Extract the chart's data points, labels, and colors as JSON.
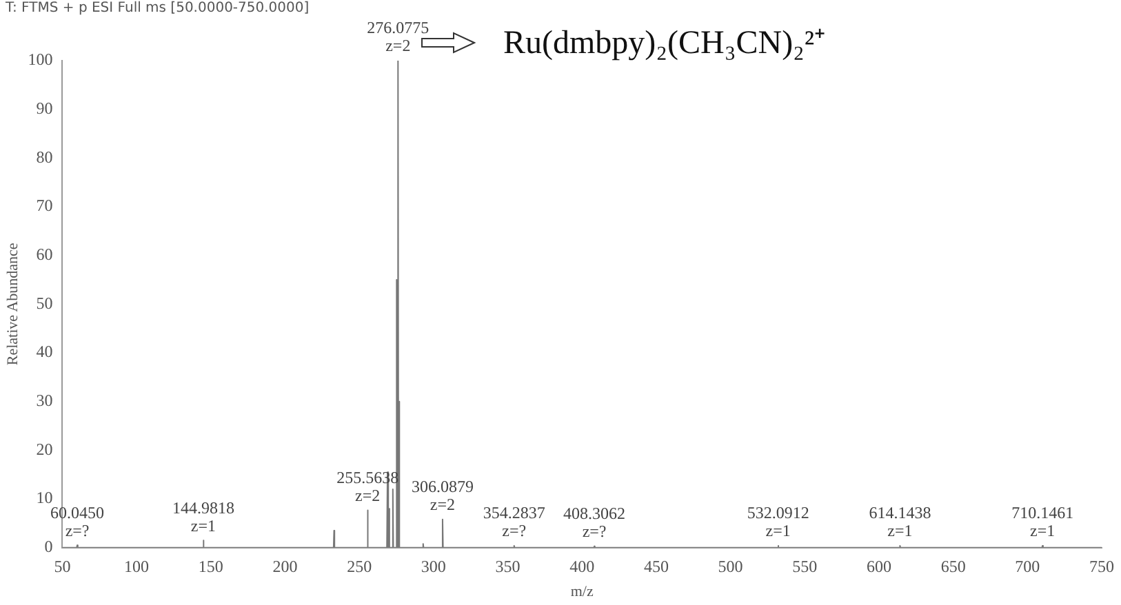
{
  "chart_data": {
    "type": "line",
    "title": "T: FTMS + p ESI Full ms [50.0000-750.0000]",
    "xlabel": "m/z",
    "ylabel": "Relative Abundance",
    "x": [
      50,
      59.7,
      60.045,
      60.4,
      144.6,
      144.98,
      145.3,
      232.7,
      233,
      233.3,
      255.2,
      255.56,
      255.9,
      268.6,
      269,
      269.4,
      269.7,
      270,
      270.3,
      272.3,
      272.6,
      272.9,
      274.7,
      275,
      275.3,
      275.7,
      276.0775,
      276.4,
      276.7,
      277,
      277.3,
      292.7,
      293,
      293.3,
      305.7,
      306.09,
      306.4,
      353.9,
      354.28,
      354.6,
      408,
      408.31,
      408.6,
      531.8,
      532.09,
      532.4,
      613.8,
      614.14,
      614.5,
      709.8,
      710.15,
      710.5,
      750
    ],
    "series": [
      {
        "color": "#777777",
        "values": [
          0,
          0,
          0.5,
          0,
          0,
          1.5,
          0,
          0,
          3.5,
          0,
          0,
          7.7,
          0,
          0,
          15.5,
          0,
          0,
          8,
          0,
          0,
          12,
          0,
          0,
          55,
          0,
          0,
          100,
          0,
          0,
          30,
          0,
          0,
          0.8,
          0,
          0,
          5.8,
          0,
          0,
          0.4,
          0,
          0,
          0.3,
          0,
          0,
          0.4,
          0,
          0,
          0.4,
          0,
          0,
          0.4,
          0,
          0
        ]
      }
    ],
    "xlim": [
      50,
      750
    ],
    "xticks": [
      50,
      100,
      150,
      200,
      250,
      300,
      350,
      400,
      450,
      500,
      550,
      600,
      650,
      700,
      750
    ],
    "ylim": [
      0,
      100
    ],
    "yticks": [
      0,
      10,
      20,
      30,
      40,
      50,
      60,
      70,
      80,
      90,
      100
    ],
    "grid": false,
    "legend": false,
    "marker": "none",
    "line_style": "solid",
    "annotations": [
      {
        "text": "276.0775\nz=2",
        "x": 276.0775,
        "y": 100
      },
      {
        "text": "60.0450\nz=?",
        "x": 60.045,
        "y": 0.5
      },
      {
        "text": "144.9818\nz=1",
        "x": 144.9818,
        "y": 1.5
      },
      {
        "text": "255.5638\nz=2",
        "x": 255.5638,
        "y": 7.7
      },
      {
        "text": "306.0879\nz=2",
        "x": 306.0879,
        "y": 5.8
      },
      {
        "text": "354.2837\nz=?",
        "x": 354.2837,
        "y": 0.4
      },
      {
        "text": "408.3062\nz=?",
        "x": 408.3062,
        "y": 0.3
      },
      {
        "text": "532.0912\nz=1",
        "x": 532.0912,
        "y": 0.4
      },
      {
        "text": "614.1438\nz=1",
        "x": 614.1438,
        "y": 0.4
      },
      {
        "text": "710.1461\nz=1",
        "x": 710.1461,
        "y": 0.4
      },
      "Ru(dmbpy)₂(CH₃CN)₂²⁺"
    ]
  }
}
